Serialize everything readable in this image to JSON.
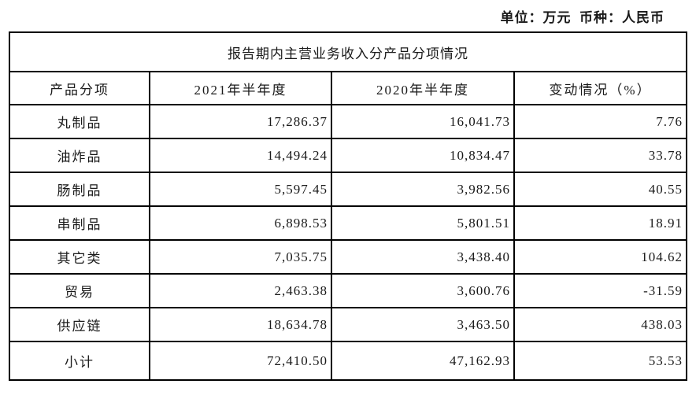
{
  "meta": {
    "unit_note": "单位：万元  币种：人民币"
  },
  "table": {
    "title": "报告期内主营业务收入分产品分项情况",
    "columns": {
      "product": "产品分项",
      "h1_2021": "2021年半年度",
      "h1_2020": "2020年半年度",
      "change": "变动情况（%）"
    },
    "rows": [
      {
        "product": "丸制品",
        "h1_2021": "17,286.37",
        "h1_2020": "16,041.73",
        "change": "7.76"
      },
      {
        "product": "油炸品",
        "h1_2021": "14,494.24",
        "h1_2020": "10,834.47",
        "change": "33.78"
      },
      {
        "product": "肠制品",
        "h1_2021": "5,597.45",
        "h1_2020": "3,982.56",
        "change": "40.55"
      },
      {
        "product": "串制品",
        "h1_2021": "6,898.53",
        "h1_2020": "5,801.51",
        "change": "18.91"
      },
      {
        "product": "其它类",
        "h1_2021": "7,035.75",
        "h1_2020": "3,438.40",
        "change": "104.62"
      },
      {
        "product": "贸易",
        "h1_2021": "2,463.38",
        "h1_2020": "3,600.76",
        "change": "-31.59"
      },
      {
        "product": "供应链",
        "h1_2021": "18,634.78",
        "h1_2020": "3,463.50",
        "change": "438.03"
      },
      {
        "product": "小计",
        "h1_2021": "72,410.50",
        "h1_2020": "47,162.93",
        "change": "53.53"
      }
    ]
  }
}
